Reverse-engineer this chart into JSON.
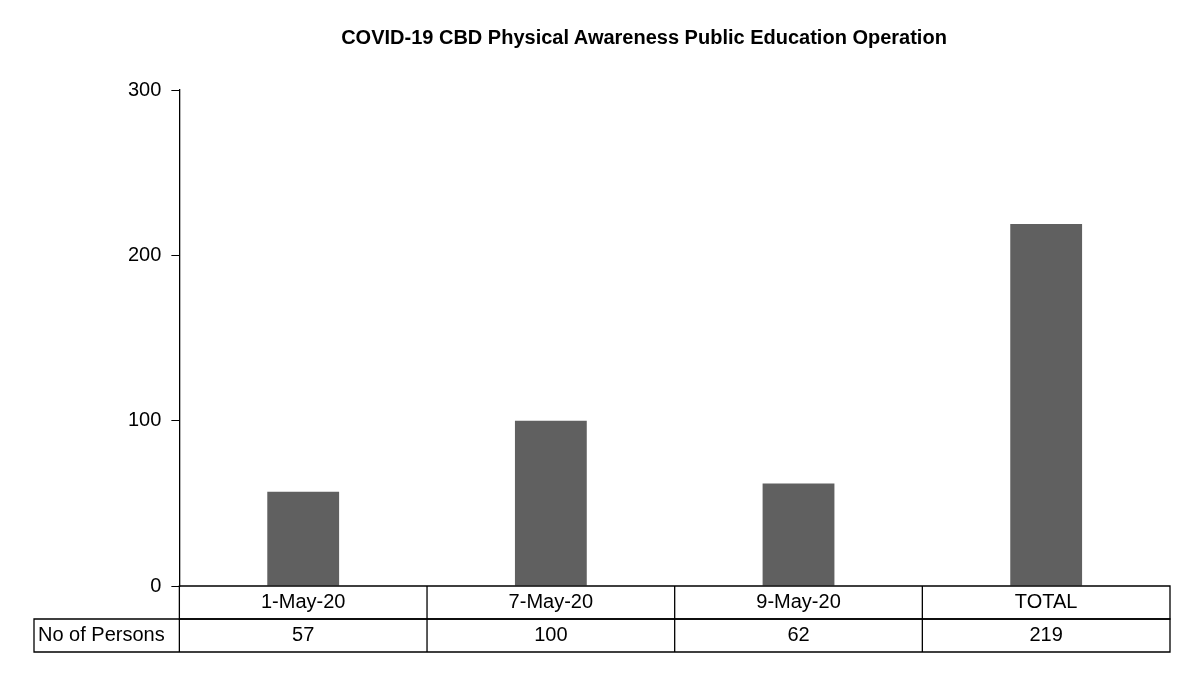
{
  "chart_data": {
    "type": "bar",
    "title": "COVID-19 CBD Physical Awareness Public Education Operation",
    "categories": [
      "1-May-20",
      "7-May-20",
      "9-May-20",
      "TOTAL"
    ],
    "series": [
      {
        "name": "No of Persons",
        "color": "#606060",
        "values": [
          57,
          100,
          62,
          219
        ]
      }
    ],
    "ylim": [
      0,
      300
    ],
    "yticks": [
      0,
      100,
      200,
      300
    ],
    "data_labels": true
  }
}
